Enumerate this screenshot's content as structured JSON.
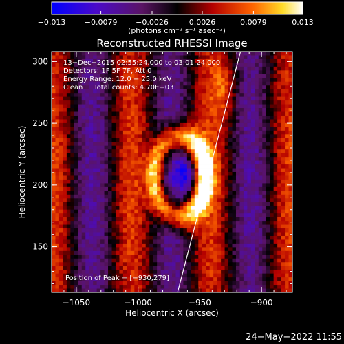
{
  "chart_data": {
    "type": "heatmap",
    "title": "Reconstructed RHESSI Image",
    "xlabel": "Heliocentric X (arcsec)",
    "ylabel": "Heliocentric Y (arcsec)",
    "xlim": [
      -1070,
      -875
    ],
    "ylim": [
      113,
      308
    ],
    "x_ticks": [
      -1050,
      -1000,
      -950,
      -900
    ],
    "y_ticks": [
      150,
      200,
      250,
      300
    ],
    "x_tick_labels": [
      "−1050",
      "−1000",
      "−950",
      "−900"
    ],
    "y_tick_labels": [
      "150",
      "200",
      "250",
      "300"
    ],
    "colorbar": {
      "min": -0.013,
      "max": 0.013,
      "tick_values": [
        -0.013,
        -0.0079,
        -0.0026,
        0.0026,
        0.0079,
        0.013
      ],
      "tick_labels": [
        "−0.013",
        "−0.0079",
        "−0.0026",
        "0.0026",
        "0.0079",
        "0.013"
      ],
      "unit_label": "(photons cm⁻² s⁻¹ asec⁻²)"
    },
    "annotations": [
      "13−Dec−2015 02:55:24.000 to 03:01:24.000",
      "Detectors: 1F 5F 7F, Att 0",
      "Energy Range: 12.0 − 25.0 keV",
      "Clean     Total counts: 4.70E+03"
    ],
    "peak_label": "Position of Peak = [−930,279]",
    "limb_line": {
      "x": [
        -968,
        -917
      ],
      "y": [
        113,
        308
      ]
    },
    "peak": {
      "x": -930,
      "y": 279
    },
    "grid": false
  },
  "footer": {
    "timestamp": "24−May−2022 11:55"
  },
  "colors": {
    "background": "#000000",
    "axes": "#ffffff"
  }
}
